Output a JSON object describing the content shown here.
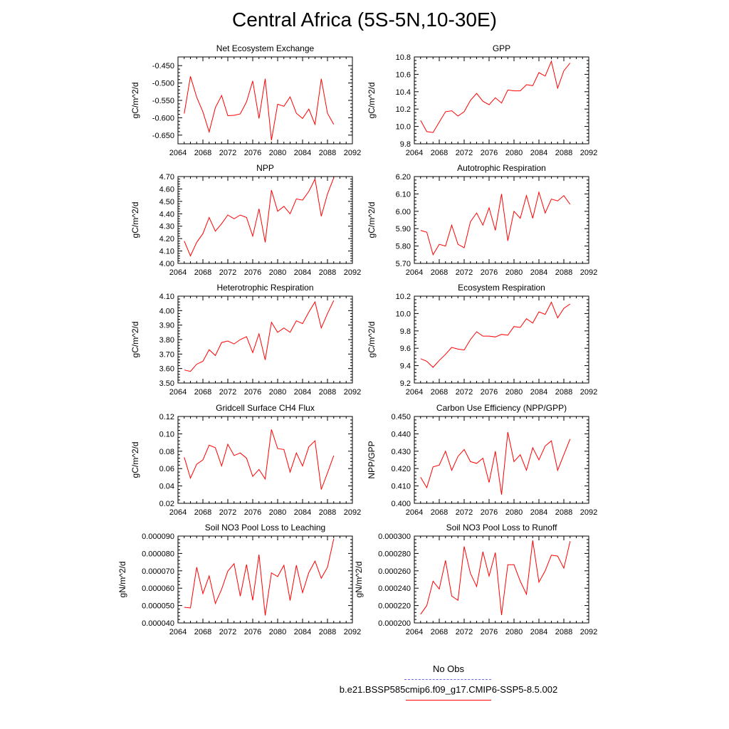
{
  "title": "Central Africa (5S-5N,10-30E)",
  "legend": [
    {
      "label": "No Obs",
      "color": "#6a6ae8",
      "dash": true
    },
    {
      "label": "b.e21.BSSP585cmip6.f09_g17.CMIP6-SSP5-8.5.002",
      "color": "#ff0000",
      "dash": false
    }
  ],
  "chart_data": [
    {
      "type": "line",
      "title": "Net Ecosystem Exchange",
      "ylabel": "gC/m^2/d",
      "xlim": [
        2064,
        2092
      ],
      "ylim": [
        -0.675,
        -0.425
      ],
      "yticks": [
        -0.65,
        -0.6,
        -0.55,
        -0.5,
        -0.45
      ],
      "ytick_labels": [
        "-0.650",
        "-0.600",
        "-0.550",
        "-0.500",
        "-0.450"
      ],
      "xticks": [
        2064,
        2068,
        2072,
        2076,
        2080,
        2084,
        2088,
        2092
      ],
      "x": [
        2065,
        2066,
        2067,
        2068,
        2069,
        2070,
        2071,
        2072,
        2073,
        2074,
        2075,
        2076,
        2077,
        2078,
        2079,
        2080,
        2081,
        2082,
        2083,
        2084,
        2085,
        2086,
        2087,
        2088,
        2089
      ],
      "series": [
        {
          "color": "#ff0000",
          "values": [
            -0.588,
            -0.481,
            -0.541,
            -0.583,
            -0.641,
            -0.571,
            -0.536,
            -0.594,
            -0.593,
            -0.589,
            -0.554,
            -0.494,
            -0.602,
            -0.488,
            -0.665,
            -0.561,
            -0.567,
            -0.54,
            -0.587,
            -0.602,
            -0.575,
            -0.619,
            -0.488,
            -0.587,
            -0.619
          ]
        }
      ]
    },
    {
      "type": "line",
      "title": "GPP",
      "ylabel": "gC/m^2/d",
      "xlim": [
        2064,
        2092
      ],
      "ylim": [
        9.8,
        10.8
      ],
      "yticks": [
        9.8,
        10.0,
        10.2,
        10.4,
        10.6,
        10.8
      ],
      "ytick_labels": [
        "9.8",
        "10.0",
        "10.2",
        "10.4",
        "10.6",
        "10.8"
      ],
      "xticks": [
        2064,
        2068,
        2072,
        2076,
        2080,
        2084,
        2088,
        2092
      ],
      "x": [
        2065,
        2066,
        2067,
        2068,
        2069,
        2070,
        2071,
        2072,
        2073,
        2074,
        2075,
        2076,
        2077,
        2078,
        2079,
        2080,
        2081,
        2082,
        2083,
        2084,
        2085,
        2086,
        2087,
        2088,
        2089
      ],
      "series": [
        {
          "color": "#ff0000",
          "values": [
            10.07,
            9.94,
            9.93,
            10.05,
            10.17,
            10.18,
            10.12,
            10.17,
            10.3,
            10.38,
            10.29,
            10.25,
            10.33,
            10.27,
            10.42,
            10.41,
            10.41,
            10.48,
            10.47,
            10.62,
            10.58,
            10.75,
            10.44,
            10.64,
            10.73
          ]
        }
      ]
    },
    {
      "type": "line",
      "title": "NPP",
      "ylabel": "gC/m^2/d",
      "xlim": [
        2064,
        2092
      ],
      "ylim": [
        4.0,
        4.7
      ],
      "yticks": [
        4.0,
        4.1,
        4.2,
        4.3,
        4.4,
        4.5,
        4.6,
        4.7
      ],
      "ytick_labels": [
        "4.00",
        "4.10",
        "4.20",
        "4.30",
        "4.40",
        "4.50",
        "4.60",
        "4.70"
      ],
      "xticks": [
        2064,
        2068,
        2072,
        2076,
        2080,
        2084,
        2088,
        2092
      ],
      "x": [
        2065,
        2066,
        2067,
        2068,
        2069,
        2070,
        2071,
        2072,
        2073,
        2074,
        2075,
        2076,
        2077,
        2078,
        2079,
        2080,
        2081,
        2082,
        2083,
        2084,
        2085,
        2086,
        2087,
        2088,
        2089
      ],
      "series": [
        {
          "color": "#ff0000",
          "values": [
            4.18,
            4.06,
            4.17,
            4.24,
            4.37,
            4.26,
            4.32,
            4.39,
            4.36,
            4.39,
            4.37,
            4.22,
            4.44,
            4.17,
            4.59,
            4.42,
            4.46,
            4.4,
            4.52,
            4.51,
            4.58,
            4.68,
            4.38,
            4.56,
            4.69
          ]
        }
      ]
    },
    {
      "type": "line",
      "title": "Autotrophic Respiration",
      "ylabel": "gC/m^2/d",
      "xlim": [
        2064,
        2092
      ],
      "ylim": [
        5.7,
        6.2
      ],
      "yticks": [
        5.7,
        5.8,
        5.9,
        6.0,
        6.1,
        6.2
      ],
      "ytick_labels": [
        "5.70",
        "5.80",
        "5.90",
        "6.00",
        "6.10",
        "6.20"
      ],
      "xticks": [
        2064,
        2068,
        2072,
        2076,
        2080,
        2084,
        2088,
        2092
      ],
      "x": [
        2065,
        2066,
        2067,
        2068,
        2069,
        2070,
        2071,
        2072,
        2073,
        2074,
        2075,
        2076,
        2077,
        2078,
        2079,
        2080,
        2081,
        2082,
        2083,
        2084,
        2085,
        2086,
        2087,
        2088,
        2089
      ],
      "series": [
        {
          "color": "#ff0000",
          "values": [
            5.89,
            5.88,
            5.75,
            5.81,
            5.8,
            5.92,
            5.81,
            5.79,
            5.94,
            5.99,
            5.92,
            6.02,
            5.89,
            6.1,
            5.83,
            6.0,
            5.96,
            6.09,
            5.96,
            6.11,
            5.99,
            6.07,
            6.06,
            6.09,
            6.04
          ]
        }
      ]
    },
    {
      "type": "line",
      "title": "Heterotrophic Respiration",
      "ylabel": "gC/m^2/d",
      "xlim": [
        2064,
        2092
      ],
      "ylim": [
        3.5,
        4.1
      ],
      "yticks": [
        3.5,
        3.6,
        3.7,
        3.8,
        3.9,
        4.0,
        4.1
      ],
      "ytick_labels": [
        "3.50",
        "3.60",
        "3.70",
        "3.80",
        "3.90",
        "4.00",
        "4.10"
      ],
      "xticks": [
        2064,
        2068,
        2072,
        2076,
        2080,
        2084,
        2088,
        2092
      ],
      "x": [
        2065,
        2066,
        2067,
        2068,
        2069,
        2070,
        2071,
        2072,
        2073,
        2074,
        2075,
        2076,
        2077,
        2078,
        2079,
        2080,
        2081,
        2082,
        2083,
        2084,
        2085,
        2086,
        2087,
        2088,
        2089
      ],
      "series": [
        {
          "color": "#ff0000",
          "values": [
            3.59,
            3.58,
            3.63,
            3.65,
            3.73,
            3.69,
            3.78,
            3.79,
            3.77,
            3.8,
            3.82,
            3.71,
            3.84,
            3.66,
            3.92,
            3.85,
            3.88,
            3.85,
            3.93,
            3.91,
            3.99,
            4.06,
            3.88,
            3.98,
            4.07
          ]
        }
      ]
    },
    {
      "type": "line",
      "title": "Ecosystem Respiration",
      "ylabel": "gC/m^2/d",
      "xlim": [
        2064,
        2092
      ],
      "ylim": [
        9.2,
        10.2
      ],
      "yticks": [
        9.2,
        9.4,
        9.6,
        9.8,
        10.0,
        10.2
      ],
      "ytick_labels": [
        "9.2",
        "9.4",
        "9.6",
        "9.8",
        "10.0",
        "10.2"
      ],
      "xticks": [
        2064,
        2068,
        2072,
        2076,
        2080,
        2084,
        2088,
        2092
      ],
      "x": [
        2065,
        2066,
        2067,
        2068,
        2069,
        2070,
        2071,
        2072,
        2073,
        2074,
        2075,
        2076,
        2077,
        2078,
        2079,
        2080,
        2081,
        2082,
        2083,
        2084,
        2085,
        2086,
        2087,
        2088,
        2089
      ],
      "series": [
        {
          "color": "#ff0000",
          "values": [
            9.48,
            9.45,
            9.38,
            9.46,
            9.53,
            9.61,
            9.59,
            9.58,
            9.7,
            9.79,
            9.74,
            9.74,
            9.73,
            9.76,
            9.75,
            9.85,
            9.84,
            9.94,
            9.89,
            10.02,
            9.99,
            10.13,
            9.95,
            10.06,
            10.11
          ]
        }
      ]
    },
    {
      "type": "line",
      "title": "Gridcell Surface CH4 Flux",
      "ylabel": "gC/m^2/d",
      "xlim": [
        2064,
        2092
      ],
      "ylim": [
        0.02,
        0.12
      ],
      "yticks": [
        0.02,
        0.04,
        0.06,
        0.08,
        0.1,
        0.12
      ],
      "ytick_labels": [
        "0.02",
        "0.04",
        "0.06",
        "0.08",
        "0.10",
        "0.12"
      ],
      "xticks": [
        2064,
        2068,
        2072,
        2076,
        2080,
        2084,
        2088,
        2092
      ],
      "x": [
        2065,
        2066,
        2067,
        2068,
        2069,
        2070,
        2071,
        2072,
        2073,
        2074,
        2075,
        2076,
        2077,
        2078,
        2079,
        2080,
        2081,
        2082,
        2083,
        2084,
        2085,
        2086,
        2087,
        2088,
        2089
      ],
      "series": [
        {
          "color": "#ff0000",
          "values": [
            0.073,
            0.049,
            0.065,
            0.07,
            0.087,
            0.084,
            0.063,
            0.088,
            0.075,
            0.078,
            0.072,
            0.051,
            0.059,
            0.048,
            0.105,
            0.083,
            0.082,
            0.056,
            0.078,
            0.063,
            0.085,
            0.092,
            0.036,
            0.055,
            0.075
          ]
        }
      ]
    },
    {
      "type": "line",
      "title": "Carbon Use Efficiency (NPP/GPP)",
      "ylabel": "NPP/GPP",
      "xlim": [
        2064,
        2092
      ],
      "ylim": [
        0.4,
        0.45
      ],
      "yticks": [
        0.4,
        0.41,
        0.42,
        0.43,
        0.44,
        0.45
      ],
      "ytick_labels": [
        "0.400",
        "0.410",
        "0.420",
        "0.430",
        "0.440",
        "0.450"
      ],
      "xticks": [
        2064,
        2068,
        2072,
        2076,
        2080,
        2084,
        2088,
        2092
      ],
      "x": [
        2065,
        2066,
        2067,
        2068,
        2069,
        2070,
        2071,
        2072,
        2073,
        2074,
        2075,
        2076,
        2077,
        2078,
        2079,
        2080,
        2081,
        2082,
        2083,
        2084,
        2085,
        2086,
        2087,
        2088,
        2089
      ],
      "series": [
        {
          "color": "#ff0000",
          "values": [
            0.415,
            0.409,
            0.421,
            0.422,
            0.43,
            0.419,
            0.427,
            0.431,
            0.424,
            0.423,
            0.426,
            0.412,
            0.43,
            0.405,
            0.441,
            0.424,
            0.428,
            0.419,
            0.432,
            0.425,
            0.433,
            0.436,
            0.419,
            0.428,
            0.437
          ]
        }
      ]
    },
    {
      "type": "line",
      "title": "Soil NO3 Pool Loss to Leaching",
      "ylabel": "gN/m^2/d",
      "xlim": [
        2064,
        2092
      ],
      "ylim": [
        4e-05,
        9e-05
      ],
      "yticks": [
        4e-05,
        5e-05,
        6e-05,
        7e-05,
        8e-05,
        9e-05
      ],
      "ytick_labels": [
        "0.000040",
        "0.000050",
        "0.000060",
        "0.000070",
        "0.000080",
        "0.000090"
      ],
      "xticks": [
        2064,
        2068,
        2072,
        2076,
        2080,
        2084,
        2088,
        2092
      ],
      "x": [
        2065,
        2066,
        2067,
        2068,
        2069,
        2070,
        2071,
        2072,
        2073,
        2074,
        2075,
        2076,
        2077,
        2078,
        2079,
        2080,
        2081,
        2082,
        2083,
        2084,
        2085,
        2086,
        2087,
        2088,
        2089
      ],
      "series": [
        {
          "color": "#ff0000",
          "values": [
            4.9e-05,
            4.86e-05,
            7.21e-05,
            5.69e-05,
            6.71e-05,
            5.12e-05,
            5.94e-05,
            6.98e-05,
            7.41e-05,
            5.54e-05,
            7.36e-05,
            5.3e-05,
            7.93e-05,
            4.43e-05,
            6.88e-05,
            6.67e-05,
            7.32e-05,
            5.29e-05,
            7.32e-05,
            5.74e-05,
            6.9e-05,
            7.56e-05,
            6.57e-05,
            7.21e-05,
            8.84e-05
          ]
        }
      ]
    },
    {
      "type": "line",
      "title": "Soil NO3 Pool Loss to Runoff",
      "ylabel": "gN/m^2/d",
      "xlim": [
        2064,
        2092
      ],
      "ylim": [
        0.0002,
        0.0003
      ],
      "yticks": [
        0.0002,
        0.00022,
        0.00024,
        0.00026,
        0.00028,
        0.0003
      ],
      "ytick_labels": [
        "0.000200",
        "0.000220",
        "0.000240",
        "0.000260",
        "0.000280",
        "0.000300"
      ],
      "xticks": [
        2064,
        2068,
        2072,
        2076,
        2080,
        2084,
        2088,
        2092
      ],
      "x": [
        2065,
        2066,
        2067,
        2068,
        2069,
        2070,
        2071,
        2072,
        2073,
        2074,
        2075,
        2076,
        2077,
        2078,
        2079,
        2080,
        2081,
        2082,
        2083,
        2084,
        2085,
        2086,
        2087,
        2088,
        2089
      ],
      "series": [
        {
          "color": "#ff0000",
          "values": [
            0.00021,
            0.00022,
            0.000248,
            0.000239,
            0.000272,
            0.000231,
            0.000226,
            0.000288,
            0.000257,
            0.000242,
            0.000282,
            0.000254,
            0.000281,
            0.000209,
            0.000267,
            0.000267,
            0.000248,
            0.000233,
            0.000295,
            0.000247,
            0.00026,
            0.000278,
            0.000277,
            0.000263,
            0.000294
          ]
        }
      ]
    }
  ]
}
